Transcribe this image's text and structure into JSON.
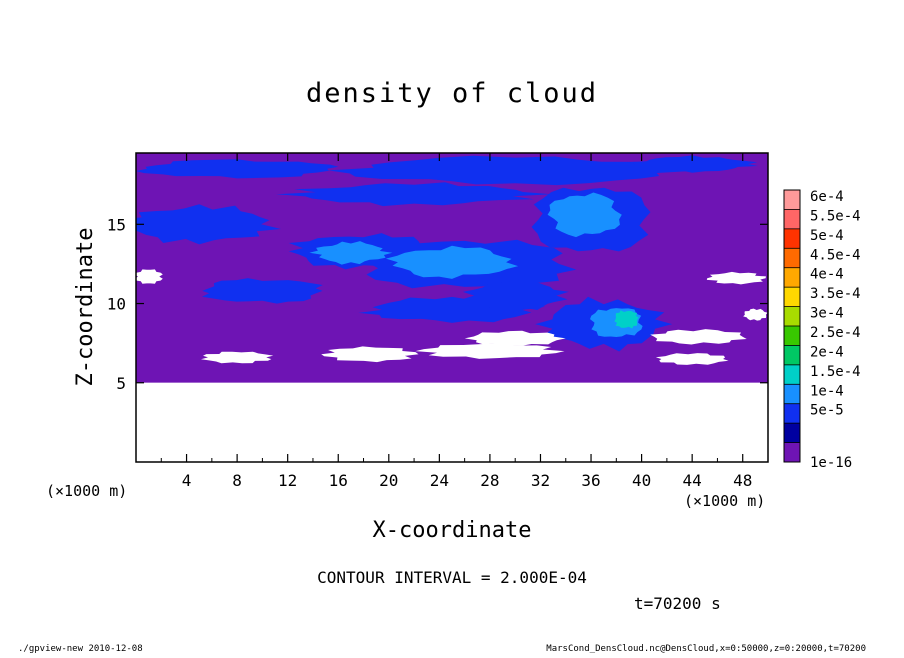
{
  "chart_data": {
    "type": "heatmap",
    "title": "density of cloud",
    "xlabel": "X-coordinate",
    "ylabel": "Z-coordinate",
    "x_unit_left": "(×1000 m)",
    "x_unit_right": "(×1000 m)",
    "xlim": [
      0,
      50
    ],
    "ylim": [
      0,
      19.5
    ],
    "x_ticks": [
      4,
      8,
      12,
      16,
      20,
      24,
      28,
      32,
      36,
      40,
      44,
      48
    ],
    "y_ticks": [
      5,
      10,
      15
    ],
    "x_tick_labels": [
      "4",
      "8",
      "12",
      "16",
      "20",
      "24",
      "28",
      "32",
      "36",
      "40",
      "44",
      "48"
    ],
    "y_tick_labels": [
      "5",
      "10",
      "15"
    ],
    "colorbar": {
      "labels": [
        "6e-4",
        "5.5e-4",
        "5e-4",
        "4.5e-4",
        "4e-4",
        "3.5e-4",
        "3e-4",
        "2.5e-4",
        "2e-4",
        "1.5e-4",
        "1e-4",
        "5e-5",
        "1e-16"
      ],
      "colors": [
        "#ff9a9a",
        "#ff6666",
        "#ff3300",
        "#ff6a00",
        "#ffa800",
        "#ffd800",
        "#a8dc00",
        "#38c800",
        "#00c864",
        "#00d0c8",
        "#1890ff",
        "#1030f0",
        "#0000a0",
        "#6e14b4"
      ]
    },
    "regions": {
      "white_below_z": 5,
      "background_color": "#6e14b4",
      "low_color": "#1030f0",
      "mid_color": "#1890ff",
      "high_color": "#00d0c8"
    },
    "blobs": [
      {
        "x": 8,
        "z": 18.5,
        "rx": 8,
        "rz": 0.6,
        "level": "low"
      },
      {
        "x": 30,
        "z": 18.4,
        "rx": 14,
        "rz": 0.9,
        "level": "low"
      },
      {
        "x": 44,
        "z": 18.8,
        "rx": 5,
        "rz": 0.5,
        "level": "low"
      },
      {
        "x": 22,
        "z": 16.9,
        "rx": 10,
        "rz": 0.7,
        "level": "low"
      },
      {
        "x": 5,
        "z": 15.0,
        "rx": 6,
        "rz": 1.2,
        "level": "low"
      },
      {
        "x": 18,
        "z": 13.3,
        "rx": 6,
        "rz": 1.1,
        "level": "low"
      },
      {
        "x": 26,
        "z": 12.5,
        "rx": 9,
        "rz": 1.6,
        "level": "low"
      },
      {
        "x": 36,
        "z": 15.3,
        "rx": 5,
        "rz": 2.2,
        "level": "low"
      },
      {
        "x": 10,
        "z": 10.8,
        "rx": 5,
        "rz": 0.8,
        "level": "low"
      },
      {
        "x": 25,
        "z": 9.6,
        "rx": 7,
        "rz": 0.8,
        "level": "low"
      },
      {
        "x": 37,
        "z": 8.7,
        "rx": 5,
        "rz": 1.6,
        "level": "low"
      },
      {
        "x": 30,
        "z": 10.5,
        "rx": 4,
        "rz": 1.0,
        "level": "low"
      },
      {
        "x": 17,
        "z": 13.2,
        "rx": 3,
        "rz": 0.7,
        "level": "mid"
      },
      {
        "x": 25,
        "z": 12.6,
        "rx": 5,
        "rz": 1.0,
        "level": "mid"
      },
      {
        "x": 35.5,
        "z": 15.6,
        "rx": 3,
        "rz": 1.4,
        "level": "mid"
      },
      {
        "x": 38,
        "z": 8.8,
        "rx": 2.2,
        "rz": 1.0,
        "level": "mid"
      },
      {
        "x": 38.8,
        "z": 9.0,
        "rx": 1.0,
        "rz": 0.6,
        "level": "high"
      }
    ],
    "holes": [
      {
        "x": 1,
        "z": 11.7,
        "rx": 1.2,
        "rz": 0.5
      },
      {
        "x": 47.5,
        "z": 11.6,
        "rx": 2.5,
        "rz": 0.4
      },
      {
        "x": 30,
        "z": 7.8,
        "rx": 4,
        "rz": 0.5
      },
      {
        "x": 44.5,
        "z": 7.9,
        "rx": 4,
        "rz": 0.5
      },
      {
        "x": 8,
        "z": 6.6,
        "rx": 3,
        "rz": 0.4
      },
      {
        "x": 18.5,
        "z": 6.8,
        "rx": 4,
        "rz": 0.5
      },
      {
        "x": 28,
        "z": 7.0,
        "rx": 6,
        "rz": 0.5
      },
      {
        "x": 44,
        "z": 6.5,
        "rx": 3,
        "rz": 0.4
      },
      {
        "x": 49,
        "z": 9.3,
        "rx": 1.0,
        "rz": 0.4
      }
    ]
  },
  "contour_interval": "CONTOUR INTERVAL = 2.000E-04",
  "time_label": "t=70200 s",
  "footer_left": "./gpview-new  2010-12-08",
  "footer_right": "MarsCond_DensCloud.nc@DensCloud,x=0:50000,z=0:20000,t=70200"
}
